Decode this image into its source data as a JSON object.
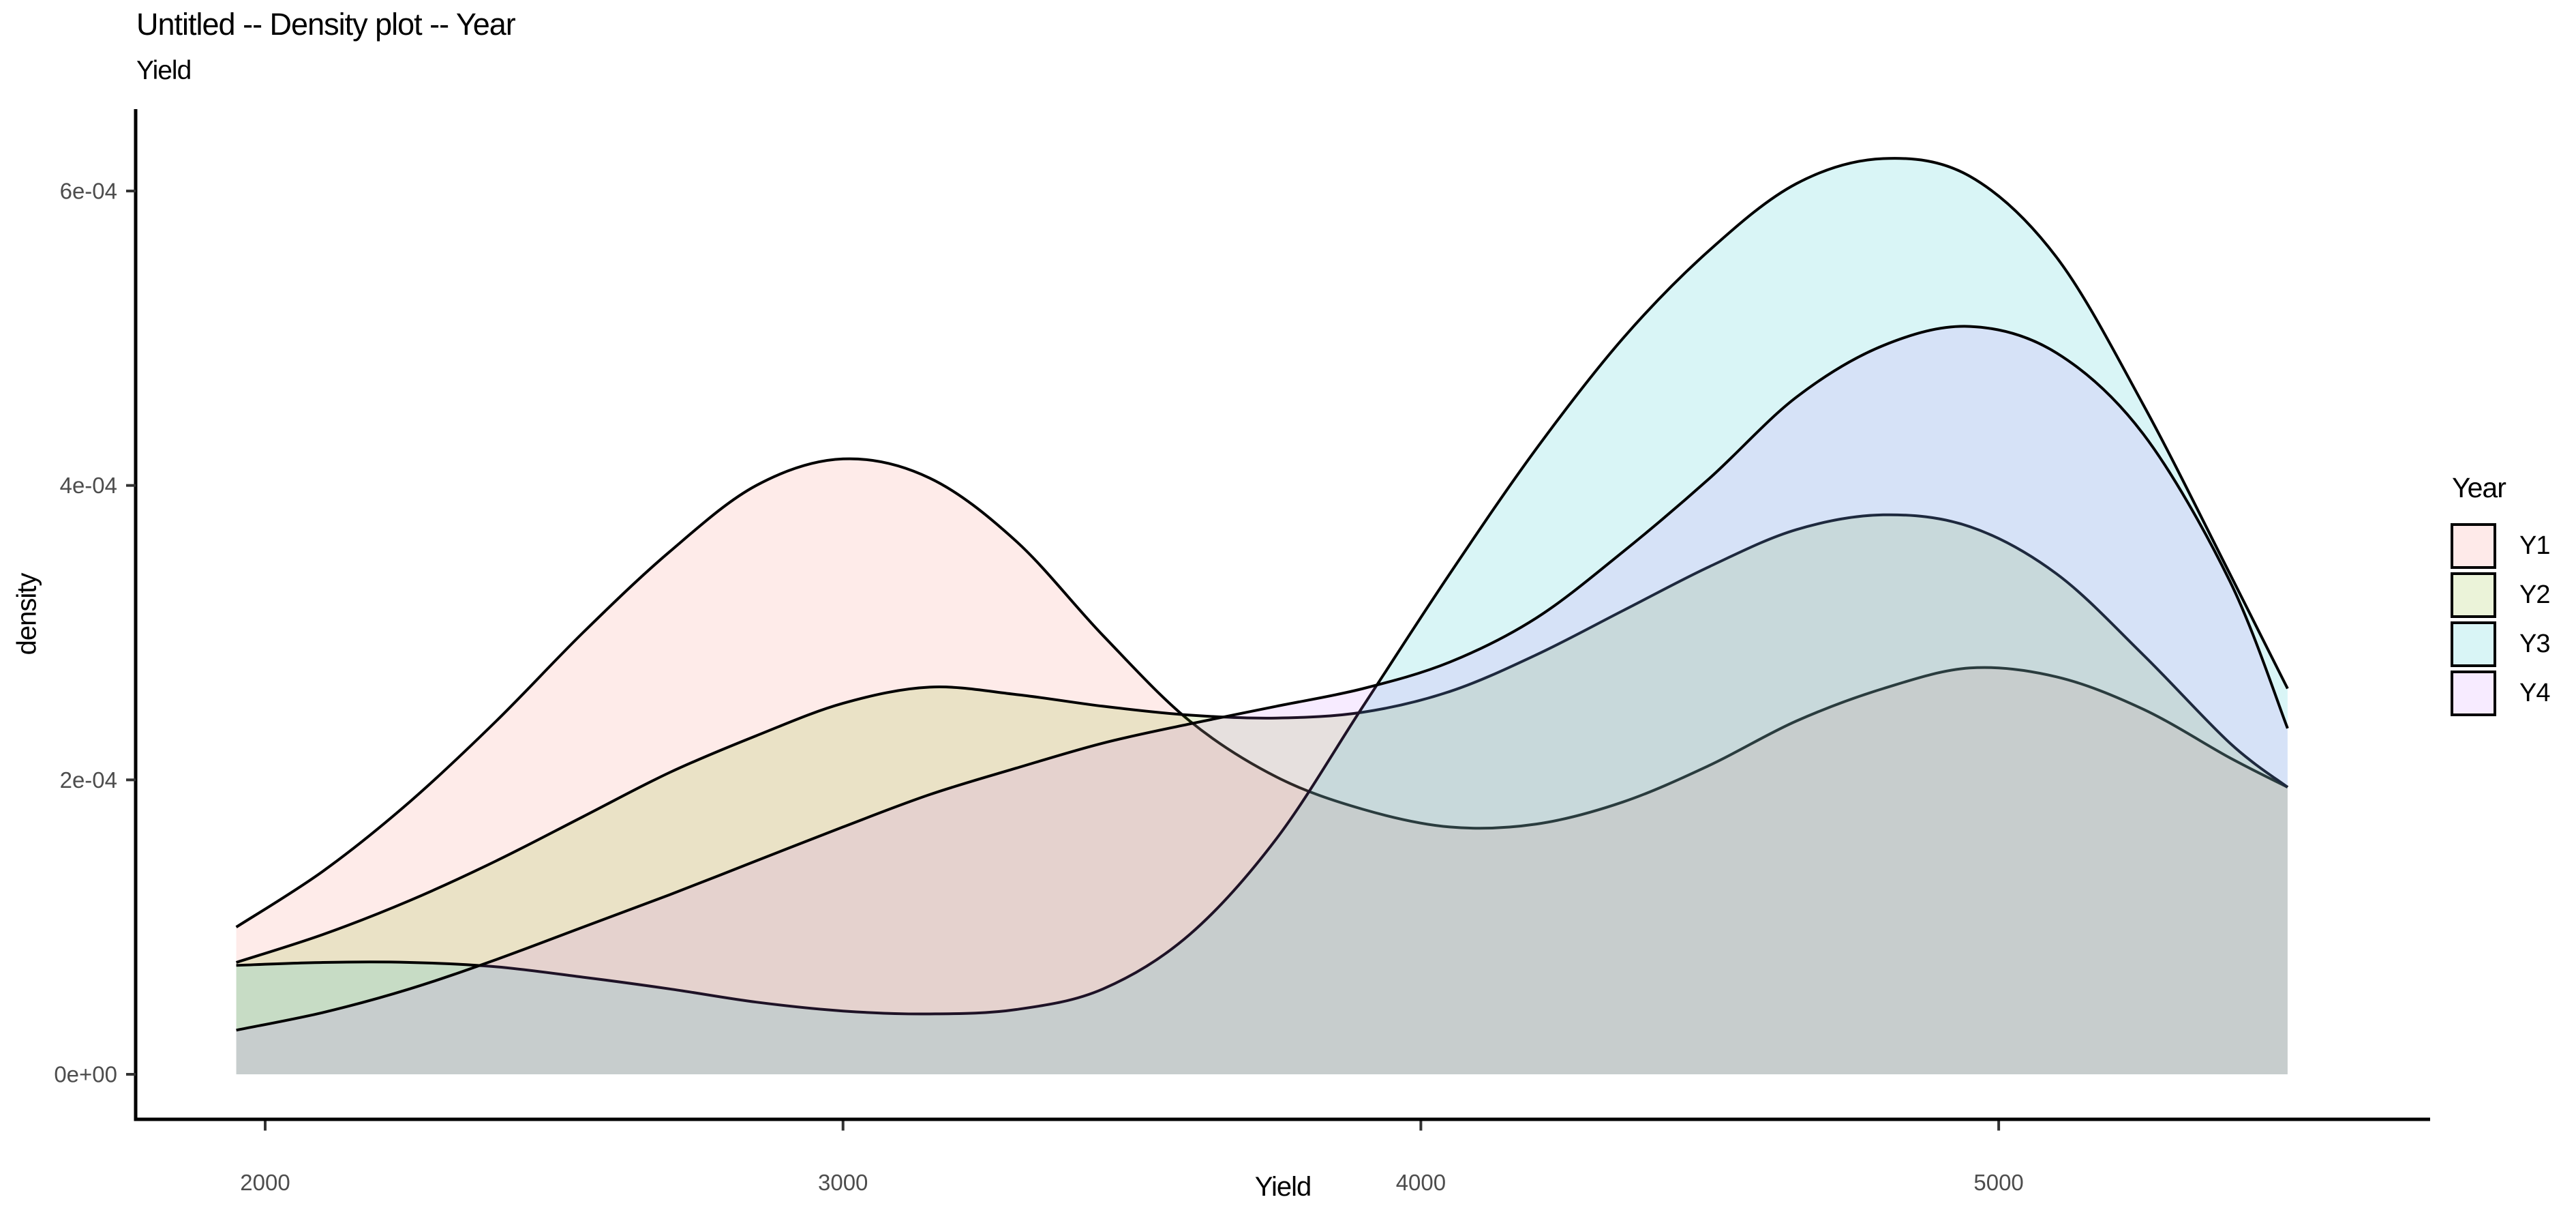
{
  "header": {
    "title": "Untitled -- Density plot -- Year",
    "subtitle": "Yield"
  },
  "chart_data": {
    "type": "area",
    "variant": "overlapping-density-curves",
    "title": "Untitled -- Density plot -- Year",
    "subtitle": "Yield",
    "xlabel": "Yield",
    "ylabel": "density",
    "grid": false,
    "background": "#ffffff",
    "axis_color": "#000000",
    "tick_color": "#333333",
    "tick_label_color": "#4D4D4D",
    "stroke_color": "#000000",
    "fill_opacity": 0.15,
    "xlim": [
      1950,
      5500
    ],
    "ylim": [
      0,
      0.000655
    ],
    "x_ticks": [
      {
        "label": "2000",
        "value": 2000
      },
      {
        "label": "3000",
        "value": 3000
      },
      {
        "label": "4000",
        "value": 4000
      },
      {
        "label": "5000",
        "value": 5000
      }
    ],
    "y_ticks": [
      {
        "label": "0e+00",
        "value": 0
      },
      {
        "label": "2e-04",
        "value": 2
      },
      {
        "label": "4e-04",
        "value": 4
      },
      {
        "label": "6e-04",
        "value": 6
      }
    ],
    "density_unit": "1e-04",
    "x": [
      1950,
      2100,
      2250,
      2400,
      2550,
      2700,
      2850,
      3000,
      3150,
      3300,
      3450,
      3600,
      3750,
      3900,
      4050,
      4200,
      4350,
      4500,
      4650,
      4800,
      4950,
      5100,
      5250,
      5400,
      5500
    ],
    "series": [
      {
        "name": "Y1",
        "color": "#F8766D",
        "values": [
          1.0,
          1.38,
          1.85,
          2.4,
          3.0,
          3.55,
          4.0,
          4.18,
          4.05,
          3.62,
          2.98,
          2.4,
          2.02,
          1.8,
          1.68,
          1.7,
          1.85,
          2.1,
          2.4,
          2.62,
          2.76,
          2.7,
          2.48,
          2.15,
          1.95
        ]
      },
      {
        "name": "Y2",
        "color": "#7CAE00",
        "values": [
          0.76,
          0.95,
          1.18,
          1.45,
          1.75,
          2.05,
          2.3,
          2.52,
          2.63,
          2.58,
          2.5,
          2.44,
          2.42,
          2.46,
          2.6,
          2.85,
          3.15,
          3.45,
          3.7,
          3.8,
          3.72,
          3.4,
          2.85,
          2.25,
          1.95
        ]
      },
      {
        "name": "Y3",
        "color": "#00BFC4",
        "values": [
          0.74,
          0.76,
          0.76,
          0.73,
          0.66,
          0.58,
          0.49,
          0.43,
          0.41,
          0.44,
          0.58,
          0.95,
          1.6,
          2.5,
          3.4,
          4.25,
          5.0,
          5.6,
          6.05,
          6.22,
          6.1,
          5.55,
          4.55,
          3.4,
          2.62
        ]
      },
      {
        "name": "Y4",
        "color": "#C77CFF",
        "values": [
          0.3,
          0.42,
          0.58,
          0.78,
          1.0,
          1.22,
          1.45,
          1.68,
          1.9,
          2.08,
          2.25,
          2.38,
          2.5,
          2.62,
          2.8,
          3.1,
          3.55,
          4.05,
          4.6,
          4.95,
          5.08,
          4.9,
          4.35,
          3.35,
          2.35
        ]
      }
    ],
    "legend": {
      "title": "Year",
      "position": "right",
      "entries": [
        {
          "label": "Y1",
          "color": "#F8766D"
        },
        {
          "label": "Y2",
          "color": "#7CAE00"
        },
        {
          "label": "Y3",
          "color": "#00BFC4"
        },
        {
          "label": "Y4",
          "color": "#C77CFF"
        }
      ]
    }
  }
}
